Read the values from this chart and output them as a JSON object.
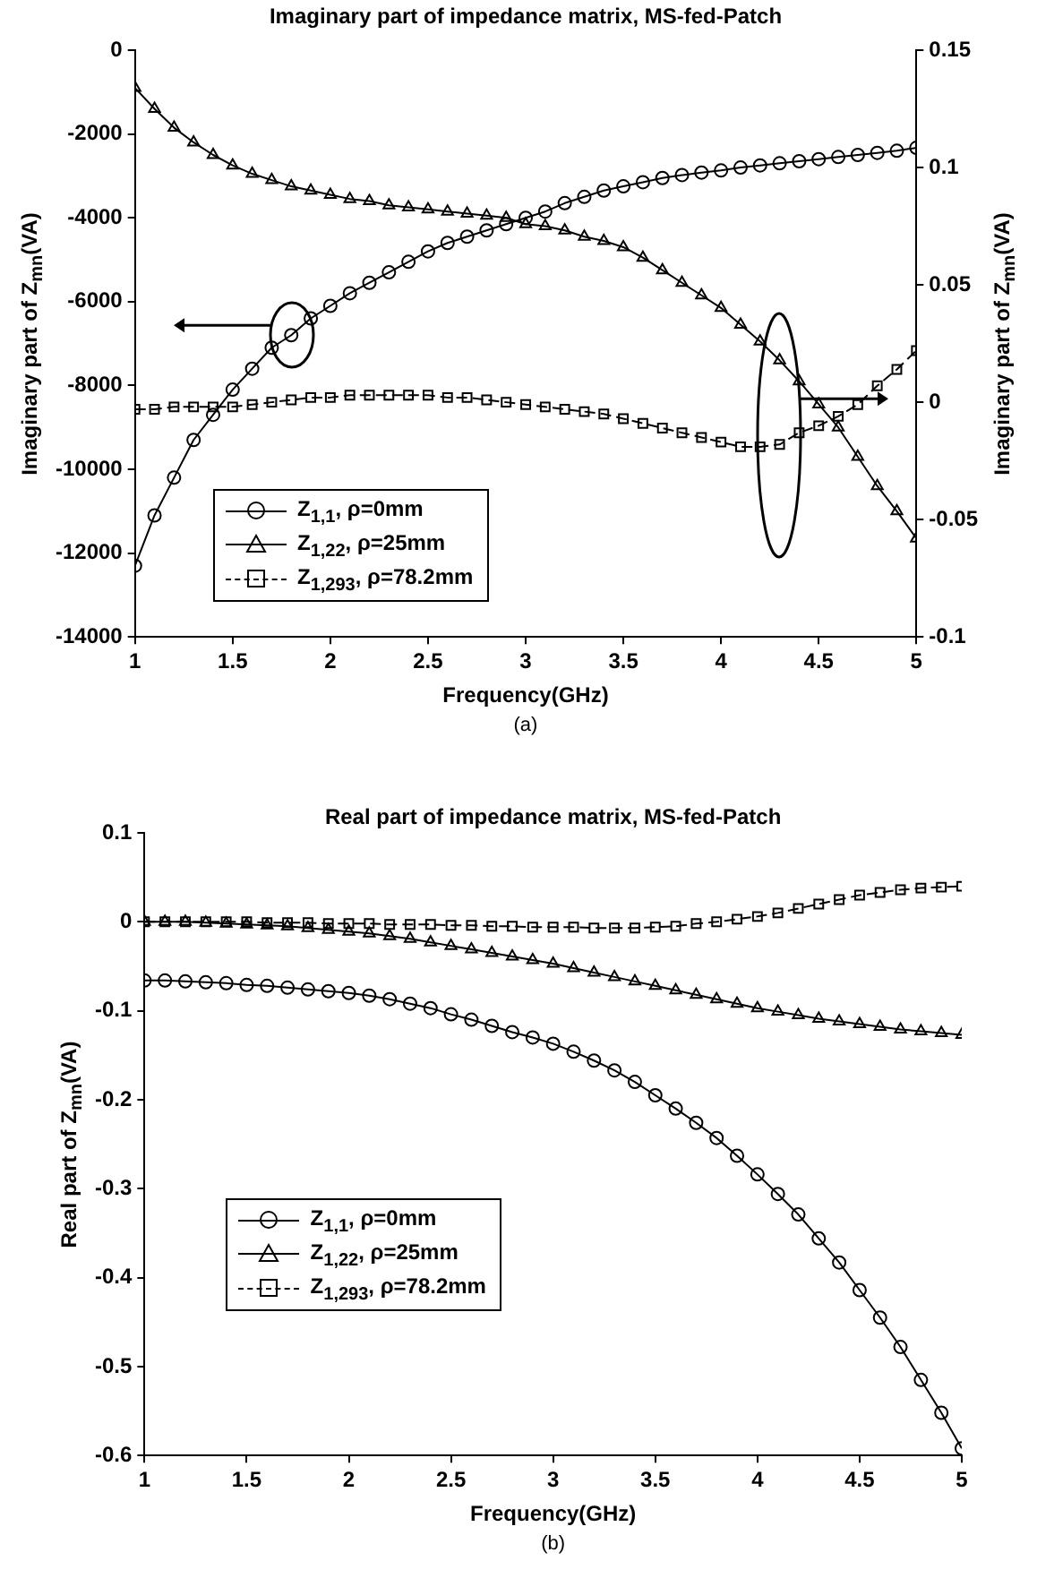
{
  "chart_data": [
    {
      "type": "line",
      "title": "Imaginary part of impedance matrix, MS-fed-Patch",
      "xlabel": "Frequency(GHz)",
      "ylabel": "Imaginary part of Z$_{mn}$(VA)",
      "y2label": "Imaginary part of Z$_{mn}$(VA)",
      "annotations": [
        "(a)"
      ],
      "x": [
        1,
        1.1,
        1.2,
        1.3,
        1.4,
        1.5,
        1.6,
        1.7,
        1.8,
        1.9,
        2,
        2.1,
        2.2,
        2.3,
        2.4,
        2.5,
        2.6,
        2.7,
        2.8,
        2.9,
        3,
        3.1,
        3.2,
        3.3,
        3.4,
        3.5,
        3.6,
        3.7,
        3.8,
        3.9,
        4,
        4.1,
        4.2,
        4.3,
        4.4,
        4.5,
        4.6,
        4.7,
        4.8,
        4.9,
        5
      ],
      "series": [
        {
          "name": "Z$_{1,1}$, ρ=0mm",
          "color": "#000000",
          "marker": "circle",
          "line_style": "solid",
          "values": [
            -12300,
            -11100,
            -10200,
            -9300,
            -8700,
            -8100,
            -7600,
            -7100,
            -6800,
            -6400,
            -6100,
            -5800,
            -5550,
            -5300,
            -5050,
            -4800,
            -4600,
            -4450,
            -4300,
            -4150,
            -4000,
            -3850,
            -3650,
            -3500,
            -3350,
            -3250,
            -3150,
            -3050,
            -2980,
            -2920,
            -2870,
            -2800,
            -2750,
            -2700,
            -2650,
            -2600,
            -2550,
            -2500,
            -2450,
            -2400,
            -2330
          ]
        },
        {
          "name": "Z$_{1,22}$, ρ=25mm",
          "color": "#000000",
          "marker": "triangle",
          "line_style": "solid",
          "values": [
            -900,
            -1400,
            -1850,
            -2200,
            -2500,
            -2750,
            -2950,
            -3100,
            -3250,
            -3350,
            -3450,
            -3550,
            -3600,
            -3700,
            -3750,
            -3800,
            -3850,
            -3900,
            -3950,
            -4000,
            -4150,
            -4200,
            -4300,
            -4450,
            -4550,
            -4700,
            -4950,
            -5250,
            -5550,
            -5850,
            -6150,
            -6550,
            -6950,
            -7400,
            -7900,
            -8450,
            -9000,
            -9700,
            -10400,
            -11000,
            -11650
          ]
        },
        {
          "name": "Z$_{1,293}$, ρ=78.2mm",
          "color": "#000000",
          "marker": "square",
          "line_style": "dashed",
          "axis": "y2",
          "values": [
            -0.003,
            -0.003,
            -0.002,
            -0.002,
            -0.002,
            -0.002,
            -0.001,
            0,
            0.001,
            0.002,
            0.002,
            0.003,
            0.003,
            0.003,
            0.003,
            0.003,
            0.002,
            0.002,
            0.001,
            0,
            -0.001,
            -0.002,
            -0.003,
            -0.004,
            -0.005,
            -0.007,
            -0.009,
            -0.011,
            -0.013,
            -0.015,
            -0.017,
            -0.019,
            -0.019,
            -0.018,
            -0.013,
            -0.01,
            -0.006,
            -0.001,
            0.007,
            0.014,
            0.022
          ]
        }
      ],
      "xlim": [
        1,
        5
      ],
      "xticks": [
        1,
        1.5,
        2,
        2.5,
        3,
        3.5,
        4,
        4.5,
        5
      ],
      "ylim": [
        -14000,
        0
      ],
      "yticks": [
        -14000,
        -12000,
        -10000,
        -8000,
        -6000,
        -4000,
        -2000,
        0
      ],
      "y2lim": [
        -0.1,
        0.15
      ],
      "y2ticks": [
        -0.1,
        -0.05,
        0,
        0.05,
        0.1,
        0.15
      ],
      "grid": false,
      "legend": "bottom left"
    },
    {
      "type": "line",
      "title": "Real part of impedance matrix, MS-fed-Patch",
      "xlabel": "Frequency(GHz)",
      "ylabel": "Real part of Z$_{mn}$(VA)",
      "annotations": [
        "(b)"
      ],
      "x": [
        1,
        1.1,
        1.2,
        1.3,
        1.4,
        1.5,
        1.6,
        1.7,
        1.8,
        1.9,
        2,
        2.1,
        2.2,
        2.3,
        2.4,
        2.5,
        2.6,
        2.7,
        2.8,
        2.9,
        3,
        3.1,
        3.2,
        3.3,
        3.4,
        3.5,
        3.6,
        3.7,
        3.8,
        3.9,
        4,
        4.1,
        4.2,
        4.3,
        4.4,
        4.5,
        4.6,
        4.7,
        4.8,
        4.9,
        5
      ],
      "series": [
        {
          "name": "Z$_{1,1}$, ρ=0mm",
          "color": "#000000",
          "marker": "circle",
          "line_style": "solid",
          "values": [
            -0.066,
            -0.066,
            -0.067,
            -0.068,
            -0.069,
            -0.071,
            -0.072,
            -0.074,
            -0.076,
            -0.078,
            -0.08,
            -0.083,
            -0.087,
            -0.092,
            -0.097,
            -0.104,
            -0.11,
            -0.117,
            -0.124,
            -0.13,
            -0.137,
            -0.146,
            -0.156,
            -0.167,
            -0.18,
            -0.195,
            -0.21,
            -0.226,
            -0.243,
            -0.263,
            -0.284,
            -0.306,
            -0.329,
            -0.356,
            -0.383,
            -0.414,
            -0.445,
            -0.478,
            -0.515,
            -0.552,
            -0.592
          ]
        },
        {
          "name": "Z$_{1,22}$, ρ=25mm",
          "color": "#000000",
          "marker": "triangle",
          "line_style": "solid",
          "values": [
            0,
            0,
            0,
            -0.001,
            -0.002,
            -0.003,
            -0.004,
            -0.005,
            -0.007,
            -0.009,
            -0.011,
            -0.013,
            -0.016,
            -0.019,
            -0.023,
            -0.027,
            -0.031,
            -0.035,
            -0.039,
            -0.043,
            -0.047,
            -0.052,
            -0.057,
            -0.062,
            -0.067,
            -0.072,
            -0.077,
            -0.082,
            -0.087,
            -0.092,
            -0.097,
            -0.101,
            -0.105,
            -0.109,
            -0.112,
            -0.115,
            -0.118,
            -0.121,
            -0.123,
            -0.125,
            -0.127
          ]
        },
        {
          "name": "Z$_{1,293}$, ρ=78.2mm",
          "color": "#000000",
          "marker": "square",
          "line_style": "dashed",
          "values": [
            0,
            0,
            0,
            0,
            0,
            0,
            -0.001,
            -0.001,
            -0.001,
            -0.002,
            -0.002,
            -0.002,
            -0.003,
            -0.003,
            -0.003,
            -0.004,
            -0.004,
            -0.005,
            -0.005,
            -0.006,
            -0.006,
            -0.006,
            -0.007,
            -0.007,
            -0.007,
            -0.006,
            -0.005,
            -0.002,
            0,
            0.003,
            0.006,
            0.01,
            0.015,
            0.02,
            0.025,
            0.03,
            0.033,
            0.036,
            0.038,
            0.039,
            0.04
          ]
        }
      ],
      "xlim": [
        1,
        5
      ],
      "xticks": [
        1,
        1.5,
        2,
        2.5,
        3,
        3.5,
        4,
        4.5,
        5
      ],
      "ylim": [
        -0.6,
        0.1
      ],
      "yticks": [
        -0.6,
        -0.5,
        -0.4,
        -0.3,
        -0.2,
        -0.1,
        0,
        0.1
      ],
      "grid": false,
      "legend": "bottom left"
    }
  ]
}
